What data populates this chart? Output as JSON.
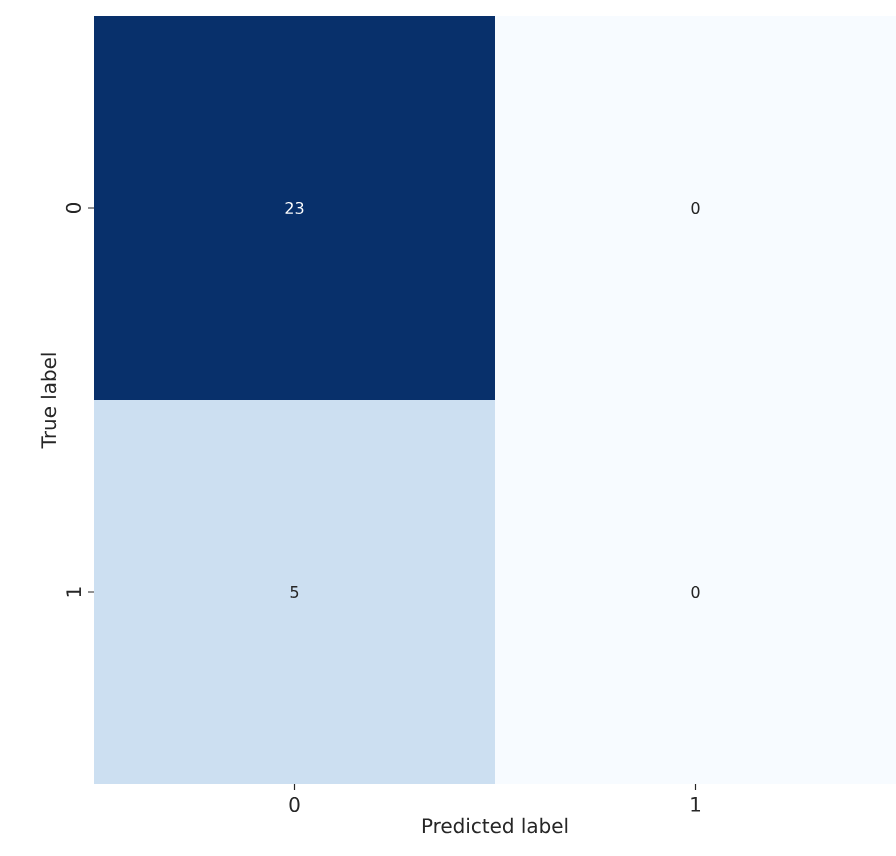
{
  "chart_data": {
    "type": "heatmap",
    "xlabel": "Predicted label",
    "ylabel": "True label",
    "categories": [
      "0",
      "1"
    ],
    "y_categories": [
      "0",
      "1"
    ],
    "cells": [
      [
        23,
        0
      ],
      [
        5,
        0
      ]
    ],
    "data_labels": true
  }
}
